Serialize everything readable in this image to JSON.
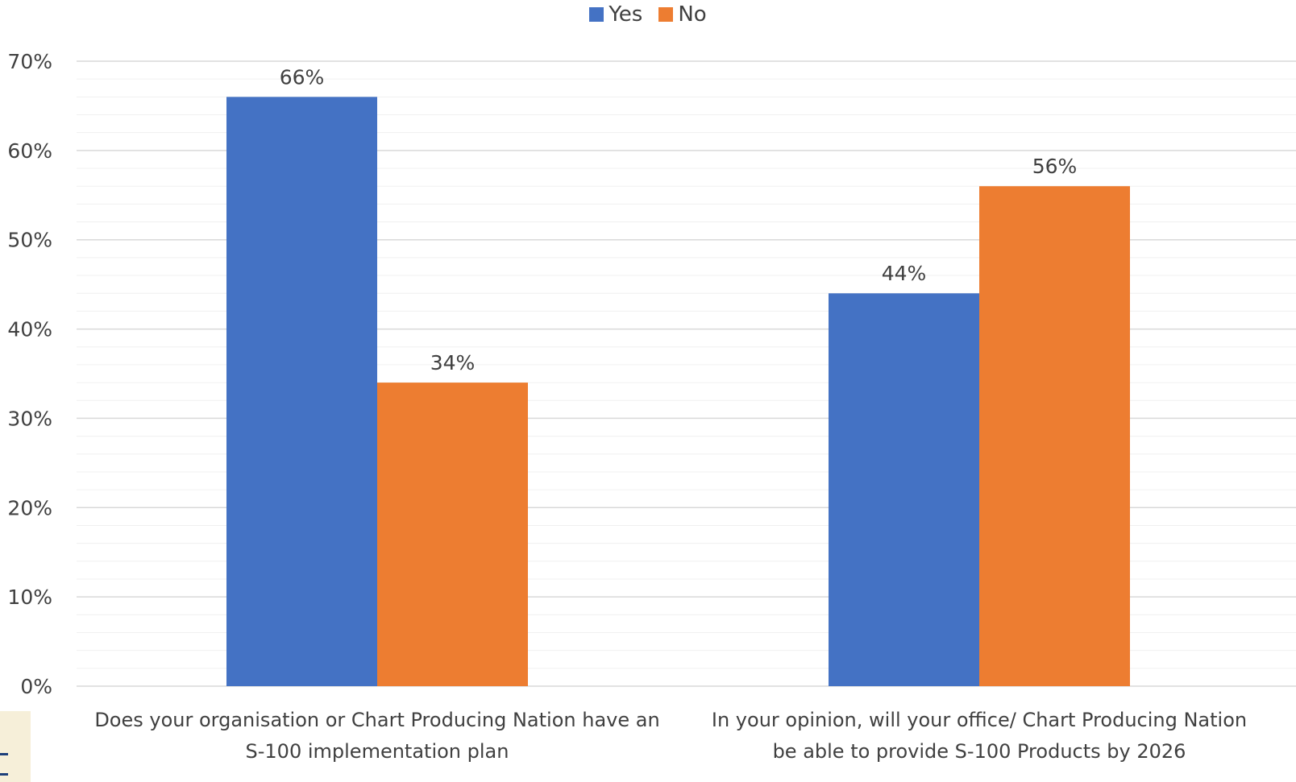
{
  "chart_data": {
    "type": "bar",
    "title": "",
    "xlabel": "",
    "ylabel": "",
    "categories": [
      "Does your organisation or Chart Producing Nation have an S-100 implementation plan",
      "In your opinion, will your office/ Chart Producing Nation be able to provide S-100 Products by 2026"
    ],
    "category_lines": [
      [
        "Does your organisation or Chart Producing Nation have an",
        "S-100 implementation plan"
      ],
      [
        "In your opinion, will your office/ Chart Producing Nation",
        "be able to provide S-100 Products by 2026"
      ]
    ],
    "series": [
      {
        "name": "Yes",
        "color": "#4472c4",
        "values": [
          66,
          44
        ],
        "labels": [
          "66%",
          "44%"
        ]
      },
      {
        "name": "No",
        "color": "#ed7d31",
        "values": [
          34,
          56
        ],
        "labels": [
          "34%",
          "56%"
        ]
      }
    ],
    "ylim": [
      0,
      70
    ],
    "yticks": [
      0,
      10,
      20,
      30,
      40,
      50,
      60,
      70
    ],
    "ytick_labels": [
      "0%",
      "10%",
      "20%",
      "30%",
      "40%",
      "50%",
      "60%",
      "70%"
    ],
    "grid": true,
    "legend": "top-center"
  },
  "legend": {
    "items": [
      {
        "label": "Yes",
        "color": "#4472c4"
      },
      {
        "label": "No",
        "color": "#ed7d31"
      }
    ]
  }
}
